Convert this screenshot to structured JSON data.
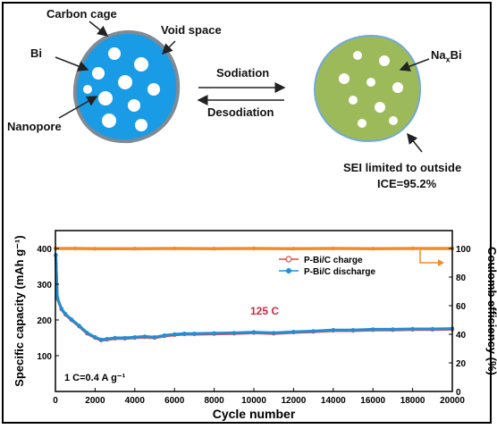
{
  "schematic": {
    "label_carbon_cage": "Carbon cage",
    "label_void_space": "Void space",
    "label_bi": "Bi",
    "label_nanopore": "Nanopore",
    "label_sodiation": "Sodiation",
    "label_desodiation": "Desodiation",
    "label_naxbi_base": "Na",
    "label_naxbi_sub": "x",
    "label_naxbi_end": "Bi",
    "label_sei": "SEI limited to outside",
    "label_ice": "ICE=95.2%",
    "colors": {
      "bi_particle": "#1a9be6",
      "naxbi_particle": "#9dba5b",
      "cage_outline": "#7f8a94",
      "sei_outline": "#6fa8dc"
    }
  },
  "chart_data": {
    "type": "scatter",
    "xlabel": "Cycle number",
    "ylabel_left": "Specific capacity (mAh g⁻¹)",
    "ylabel_right": "Coulomb efficiency (%)",
    "xlim": [
      0,
      20000
    ],
    "ylim_left": [
      0,
      450
    ],
    "ylim_right": [
      0,
      112.5
    ],
    "x_ticks": [
      "0",
      "2000",
      "4000",
      "6000",
      "8000",
      "10000",
      "12000",
      "14000",
      "16000",
      "18000",
      "20000"
    ],
    "y_ticks_left": [
      "100",
      "200",
      "300",
      "400"
    ],
    "y_ticks_right": [
      "0",
      "20",
      "40",
      "60",
      "80",
      "100"
    ],
    "annotation_rate": "125 C",
    "annotation_current": "1 C=0.4 A g⁻¹",
    "legend_position": "top-right",
    "series": [
      {
        "name": "P-Bi/C charge",
        "color": "#e8473f",
        "axis": "left",
        "x": [
          20,
          100,
          300,
          500,
          800,
          1200,
          1600,
          2000,
          2300,
          2600,
          3000,
          3500,
          4000,
          4500,
          5000,
          5500,
          6000,
          6500,
          7000,
          8000,
          9000,
          10000,
          11000,
          12000,
          13000,
          14000,
          15000,
          16000,
          17000,
          18000,
          19000,
          20000
        ],
        "values": [
          380,
          260,
          230,
          215,
          200,
          182,
          162,
          150,
          143,
          145,
          148,
          148,
          150,
          152,
          150,
          155,
          158,
          160,
          160,
          161,
          162,
          164,
          162,
          165,
          167,
          170,
          170,
          172,
          172,
          173,
          173,
          174
        ]
      },
      {
        "name": "P-Bi/C discharge",
        "color": "#1f8fd6",
        "axis": "left",
        "x": [
          20,
          100,
          300,
          500,
          800,
          1200,
          1600,
          2000,
          2300,
          2600,
          3000,
          3500,
          4000,
          4500,
          5000,
          5500,
          6000,
          6500,
          7000,
          8000,
          9000,
          10000,
          11000,
          12000,
          13000,
          14000,
          15000,
          16000,
          17000,
          18000,
          19000,
          20000
        ],
        "values": [
          382,
          262,
          232,
          217,
          202,
          184,
          164,
          152,
          145,
          147,
          150,
          150,
          152,
          154,
          152,
          157,
          160,
          162,
          162,
          163,
          164,
          166,
          164,
          167,
          169,
          172,
          172,
          174,
          174,
          175,
          175,
          176
        ]
      },
      {
        "name": "",
        "color": "#f28c28",
        "axis": "right",
        "x": [
          0,
          1000,
          2000,
          4000,
          6000,
          8000,
          10000,
          12000,
          14000,
          16000,
          18000,
          20000
        ],
        "values": [
          100,
          100,
          99.8,
          99.9,
          100,
          99.9,
          100,
          99.9,
          100,
          99.9,
          100,
          100
        ]
      }
    ]
  }
}
